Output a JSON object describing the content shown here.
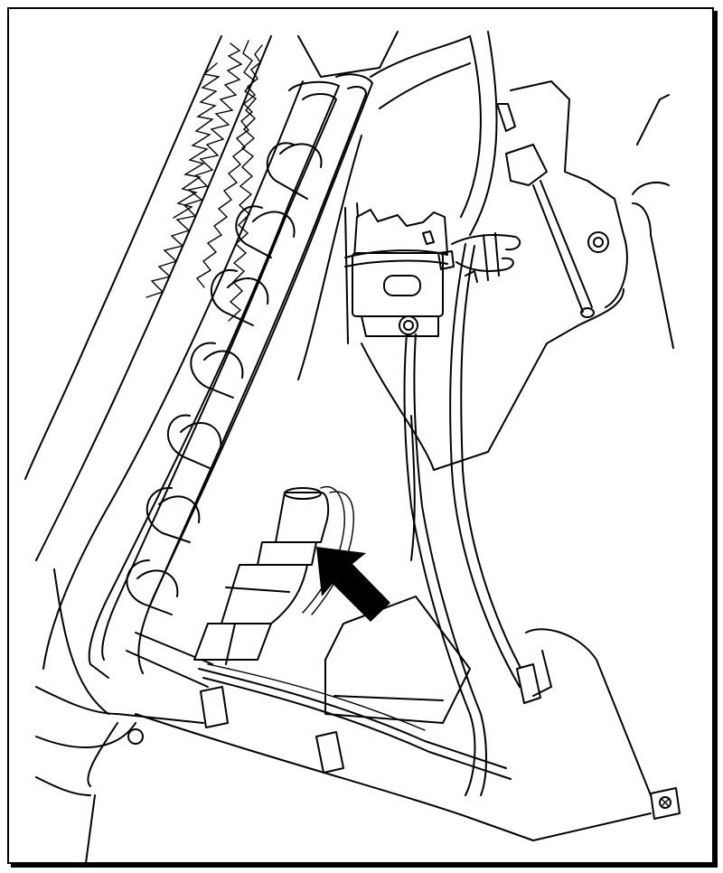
{
  "diagram": {
    "type": "technical-line-illustration",
    "background": "#ffffff",
    "line_color": "#000000",
    "callout": {
      "icon": "arrow-icon",
      "fill": "#000000",
      "points_to": "in-line-component-on-wire-harness"
    },
    "labels": []
  }
}
